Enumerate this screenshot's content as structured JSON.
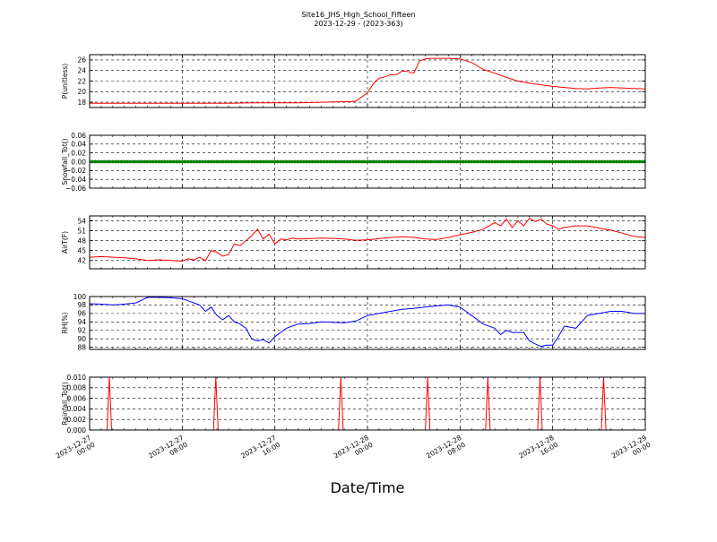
{
  "chart_data": {
    "title": "Site16_JHS_High_School_Fifteen",
    "subtitle": "2023-12-29 - (2023-363)",
    "xlabel": "Date/Time",
    "type": "line",
    "grid": true,
    "x_range": [
      "2023-12-27 00:00",
      "2023-12-29 00:00"
    ],
    "x_ticks": [
      {
        "t": 0,
        "l1": "2023-12-27",
        "l2": "00:00"
      },
      {
        "t": 8,
        "l1": "2023-12-27",
        "l2": "08:00"
      },
      {
        "t": 16,
        "l1": "2023-12-27",
        "l2": "16:00"
      },
      {
        "t": 24,
        "l1": "2023-12-28",
        "l2": "00:00"
      },
      {
        "t": 32,
        "l1": "2023-12-28",
        "l2": "08:00"
      },
      {
        "t": 40,
        "l1": "2023-12-28",
        "l2": "16:00"
      },
      {
        "t": 48,
        "l1": "2023-12-29",
        "l2": "00:00"
      }
    ],
    "panels": [
      {
        "ylabel": "P(unitless)",
        "color": "#ff0000",
        "ylim": [
          17,
          27
        ],
        "yticks": [
          18,
          20,
          22,
          24,
          26
        ],
        "ytick_labels": [
          "18",
          "20",
          "22",
          "24",
          "26"
        ],
        "x": [
          0,
          2,
          4,
          6,
          8,
          10,
          12,
          14,
          16,
          18,
          20,
          22,
          22.5,
          23,
          24,
          24.5,
          25,
          25.5,
          26,
          26.5,
          27,
          27.5,
          28,
          28.5,
          29,
          29.5,
          30,
          31,
          32,
          33,
          34,
          35,
          36,
          37,
          38,
          39,
          40,
          41,
          42,
          43,
          44,
          45,
          46,
          47,
          48
        ],
        "y": [
          17.8,
          17.8,
          17.8,
          17.8,
          17.8,
          17.8,
          17.8,
          17.9,
          17.9,
          17.9,
          18.0,
          18.1,
          18.1,
          18.2,
          19.8,
          21.5,
          22.5,
          22.8,
          23.2,
          23.2,
          23.9,
          23.8,
          23.5,
          25.8,
          26.2,
          26.3,
          26.3,
          26.3,
          26.2,
          25.5,
          24.2,
          23.5,
          22.7,
          22.0,
          21.6,
          21.3,
          21.0,
          20.8,
          20.6,
          20.5,
          20.7,
          20.8,
          20.7,
          20.6,
          20.5
        ]
      },
      {
        "ylabel": "Snowfall_Tot()",
        "color": "#008000",
        "ylim": [
          -0.06,
          0.06
        ],
        "yticks": [
          -0.06,
          -0.04,
          -0.02,
          0.0,
          0.02,
          0.04,
          0.06
        ],
        "ytick_labels": [
          "−0.06",
          "−0.04",
          "−0.02",
          "0.00",
          "0.02",
          "0.04",
          "0.06"
        ],
        "constant": 0.0,
        "marker": "dot"
      },
      {
        "ylabel": "AirT(F)",
        "color": "#ff0000",
        "ylim": [
          39.5,
          55.5
        ],
        "yticks": [
          42,
          45,
          48,
          51,
          54
        ],
        "ytick_labels": [
          "42",
          "45",
          "48",
          "51",
          "54"
        ],
        "x": [
          0,
          1,
          2,
          3,
          4,
          5,
          6,
          7,
          8,
          8.5,
          9,
          9.5,
          10,
          10.5,
          11,
          11.5,
          12,
          12.5,
          13,
          13.5,
          14,
          14.5,
          15,
          15.5,
          16,
          16.5,
          17,
          17.5,
          18,
          19,
          20,
          21,
          22,
          23,
          24,
          25,
          26,
          27,
          28,
          29,
          30,
          31,
          32,
          33,
          34,
          35,
          35.5,
          36,
          36.5,
          37,
          37.5,
          38,
          38.5,
          39,
          39.5,
          40,
          40.5,
          41,
          42,
          43,
          44,
          45,
          46,
          47,
          48
        ],
        "y": [
          43.0,
          43.2,
          43.0,
          42.8,
          42.5,
          42.0,
          42.2,
          42.0,
          41.8,
          42.5,
          42.2,
          43.0,
          41.9,
          45.0,
          44.5,
          43.3,
          43.8,
          47.0,
          46.5,
          48.0,
          49.5,
          51.5,
          48.5,
          50.0,
          47.0,
          48.5,
          48.2,
          48.8,
          48.5,
          48.6,
          48.8,
          48.7,
          48.5,
          48.1,
          48.3,
          48.6,
          49.0,
          49.2,
          49.0,
          48.5,
          48.4,
          49.0,
          49.8,
          50.5,
          51.5,
          53.5,
          52.5,
          54.5,
          52.0,
          54.0,
          52.5,
          54.8,
          53.8,
          54.5,
          53.0,
          52.5,
          51.5,
          52.0,
          52.5,
          52.5,
          51.8,
          51.2,
          50.3,
          49.3,
          49.0
        ]
      },
      {
        "ylabel": "RH(%)",
        "color": "#0000ff",
        "ylim": [
          87.5,
          100
        ],
        "yticks": [
          88,
          90,
          92,
          94,
          96,
          98,
          100
        ],
        "ytick_labels": [
          "88",
          "90",
          "92",
          "94",
          "96",
          "98",
          "100"
        ],
        "x": [
          0,
          1,
          2,
          3,
          4,
          5,
          6,
          7,
          8,
          8.5,
          9,
          9.5,
          10,
          10.5,
          11,
          11.5,
          12,
          12.5,
          13,
          13.5,
          14,
          14.5,
          15,
          15.5,
          16,
          16.5,
          17,
          17.5,
          18,
          19,
          20,
          21,
          22,
          23,
          24,
          25,
          26,
          27,
          28,
          29,
          30,
          31,
          32,
          33,
          34,
          35,
          35.5,
          36,
          36.5,
          37,
          37.5,
          38,
          38.5,
          39,
          39.5,
          40,
          40.5,
          41,
          42,
          43,
          44,
          45,
          46,
          47,
          48
        ],
        "y": [
          98.3,
          98.2,
          98.0,
          98.2,
          98.5,
          99.8,
          99.8,
          99.7,
          99.5,
          99.0,
          98.5,
          98.0,
          96.5,
          97.5,
          95.5,
          94.5,
          95.5,
          94.0,
          93.5,
          92.5,
          90.0,
          89.5,
          89.8,
          89.0,
          90.5,
          91.5,
          92.5,
          93.0,
          93.5,
          93.6,
          94.0,
          93.9,
          93.8,
          94.2,
          95.5,
          96.0,
          96.5,
          97.0,
          97.2,
          97.5,
          97.8,
          98.0,
          97.5,
          95.5,
          93.5,
          92.5,
          91.0,
          92.0,
          91.5,
          91.5,
          91.5,
          89.5,
          88.8,
          88.2,
          88.5,
          88.5,
          90.5,
          93.0,
          92.5,
          95.5,
          96.0,
          96.5,
          96.5,
          96.0,
          96.0
        ]
      },
      {
        "ylabel": "Rainfall_Tot()",
        "color": "#ff0000",
        "ylim": [
          0,
          0.01
        ],
        "yticks": [
          0.0,
          0.002,
          0.004,
          0.006,
          0.008,
          0.01
        ],
        "ytick_labels": [
          "0.000",
          "0.002",
          "0.004",
          "0.006",
          "0.008",
          "0.010"
        ],
        "spikes_x": [
          1.7,
          10.9,
          21.7,
          29.2,
          34.4,
          38.9,
          44.4
        ],
        "spike_value": 0.01
      }
    ]
  }
}
